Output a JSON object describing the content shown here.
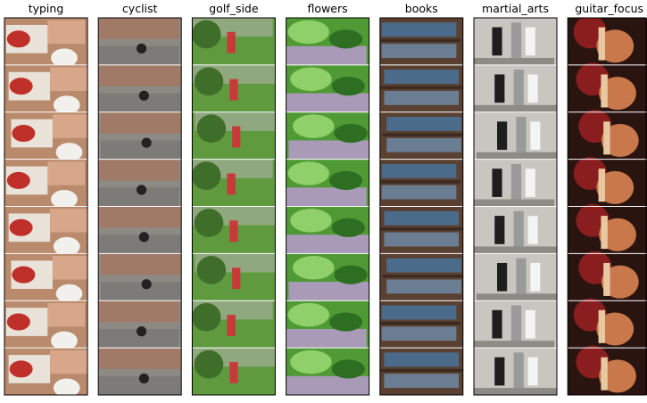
{
  "panels": [
    {
      "title": "typing"
    },
    {
      "title": "cyclist"
    },
    {
      "title": "golf_side"
    },
    {
      "title": "flowers"
    },
    {
      "title": "books"
    },
    {
      "title": "martial_arts"
    },
    {
      "title": "guitar_focus"
    }
  ]
}
